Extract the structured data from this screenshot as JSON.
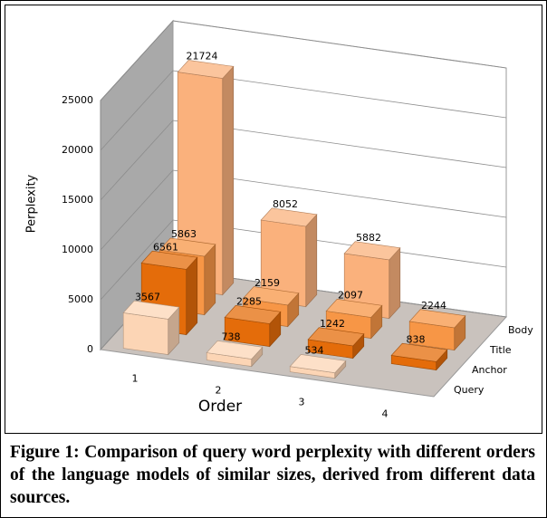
{
  "chart_data": {
    "type": "bar3d",
    "x_label": "Order",
    "y_label": "Perplexity",
    "categories": [
      "1",
      "2",
      "3",
      "4"
    ],
    "series": [
      {
        "name": "Query",
        "color": "#fcd5b5",
        "values": [
          3567,
          738,
          534,
          null
        ]
      },
      {
        "name": "Anchor",
        "color": "#e46c0a",
        "values": [
          6561,
          2285,
          1242,
          838
        ]
      },
      {
        "name": "Title",
        "color": "#f79646",
        "values": [
          5863,
          2159,
          2097,
          2244
        ]
      },
      {
        "name": "Body",
        "color": "#fab17c",
        "values": [
          21724,
          8052,
          5882,
          null
        ]
      }
    ],
    "ylim": [
      0,
      25000
    ],
    "yticks": [
      0,
      5000,
      10000,
      15000,
      20000,
      25000
    ],
    "grid": true
  },
  "caption": "Figure 1: Comparison of query word perplexity with different orders of the language models of similar sizes, derived from different data sources."
}
